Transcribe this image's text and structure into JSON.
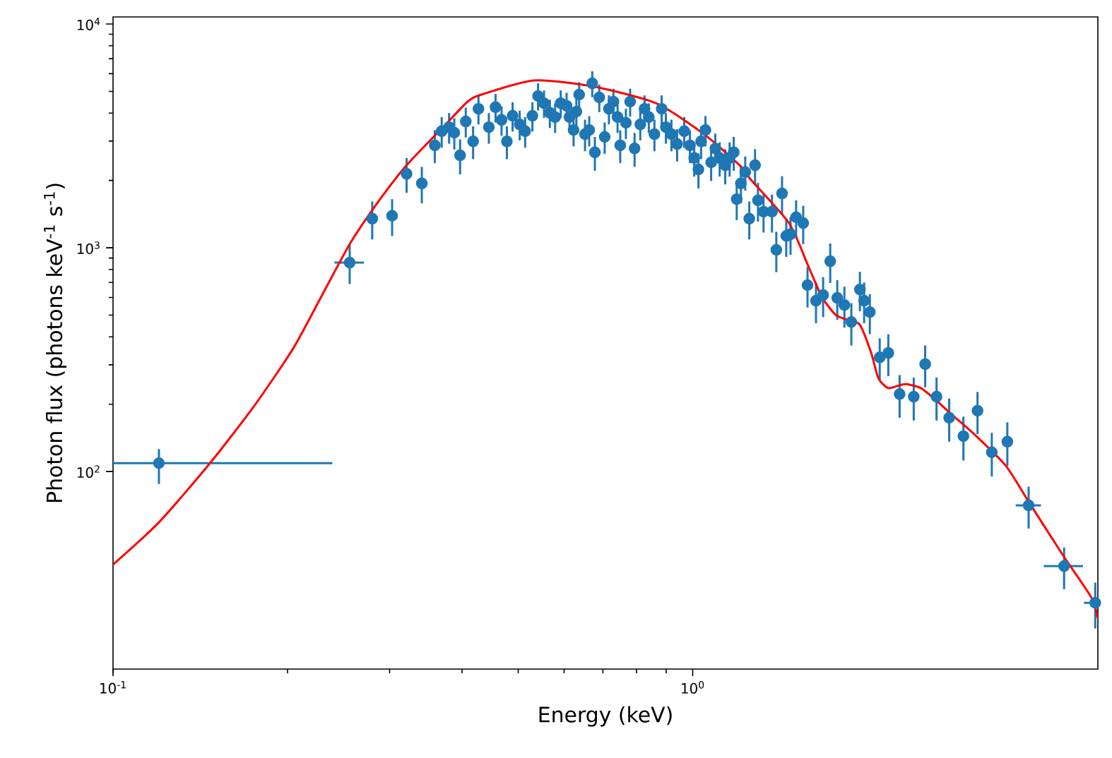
{
  "chart_data": {
    "type": "scatter",
    "xlabel": "Energy (keV)",
    "ylabel": "Photon flux (photons keV$^{-1}$ s$^{-1}$)",
    "log": "xy",
    "xlim": [
      0.1,
      5.0
    ],
    "ylim": [
      13.1,
      10760
    ],
    "xticks": [
      {
        "value": 0.1,
        "label": "10$^{-1}$"
      },
      {
        "value": 1,
        "label": "10$^{0}$"
      }
    ],
    "yticks": [
      {
        "value": 100,
        "label": "10$^{2}$"
      },
      {
        "value": 1000,
        "label": "10$^{3}$"
      },
      {
        "value": 10000,
        "label": "10$^{4}$"
      }
    ],
    "series": [
      {
        "color": "#1f77b4",
        "marker": "circle",
        "x": [
          0.12,
          0.256,
          0.28,
          0.303,
          0.321,
          0.341,
          0.359,
          0.369,
          0.38,
          0.388,
          0.397,
          0.406,
          0.418,
          0.427,
          0.445,
          0.457,
          0.468,
          0.478,
          0.489,
          0.503,
          0.514,
          0.529,
          0.541,
          0.554,
          0.567,
          0.579,
          0.592,
          0.606,
          0.613,
          0.623,
          0.63,
          0.637,
          0.652,
          0.663,
          0.671,
          0.678,
          0.69,
          0.705,
          0.717,
          0.73,
          0.742,
          0.75,
          0.767,
          0.78,
          0.794,
          0.812,
          0.826,
          0.84,
          0.859,
          0.884,
          0.899,
          0.919,
          0.94,
          0.967,
          0.989,
          1.006,
          1.023,
          1.034,
          1.052,
          1.076,
          1.094,
          1.113,
          1.138,
          1.158,
          1.177,
          1.191,
          1.211,
          1.232,
          1.252,
          1.281,
          1.296,
          1.325,
          1.37,
          1.394,
          1.426,
          1.45,
          1.475,
          1.508,
          1.551,
          1.578,
          1.632,
          1.679,
          1.727,
          1.776,
          1.827,
          1.878,
          1.943,
          1.976,
          2.021,
          2.102,
          2.175,
          2.275,
          2.406,
          2.518,
          2.634,
          2.77,
          2.931,
          3.1,
          3.281,
          3.49,
          3.798,
          4.372,
          4.948
        ],
        "values": [
          109,
          859,
          1350,
          1390,
          2140,
          1940,
          2870,
          3320,
          3460,
          3270,
          2590,
          3670,
          2990,
          4180,
          3460,
          4250,
          3730,
          2990,
          3890,
          3560,
          3320,
          3890,
          4770,
          4430,
          4010,
          3840,
          4430,
          4310,
          3840,
          3360,
          4060,
          4840,
          3220,
          3360,
          5430,
          2670,
          4700,
          3130,
          4180,
          4500,
          3840,
          2870,
          3620,
          4500,
          2780,
          3560,
          4180,
          3840,
          3220,
          4180,
          3460,
          3220,
          2910,
          3320,
          2870,
          2520,
          2240,
          2990,
          3360,
          2410,
          2780,
          2520,
          2340,
          2520,
          2670,
          1650,
          1940,
          2180,
          1350,
          2340,
          1630,
          1450,
          1450,
          979,
          1750,
          1130,
          1150,
          1370,
          1290,
          681,
          580,
          615,
          871,
          597,
          555,
          466,
          651,
          580,
          516,
          324,
          339,
          222,
          216,
          302,
          216,
          174,
          144,
          187,
          122,
          136,
          70.6,
          37.8,
          25.9
        ],
        "errors": [
          [
            88,
            126
          ],
          170,
          260,
          260,
          380,
          360,
          480,
          520,
          540,
          520,
          460,
          560,
          500,
          620,
          540,
          620,
          560,
          500,
          580,
          540,
          520,
          580,
          660,
          620,
          580,
          580,
          620,
          620,
          580,
          520,
          600,
          660,
          520,
          520,
          720,
          460,
          660,
          500,
          620,
          640,
          580,
          480,
          560,
          640,
          480,
          540,
          620,
          580,
          520,
          620,
          540,
          520,
          480,
          520,
          480,
          440,
          400,
          500,
          520,
          420,
          460,
          440,
          420,
          440,
          460,
          320,
          360,
          380,
          260,
          420,
          320,
          280,
          280,
          200,
          340,
          220,
          220,
          260,
          250,
          140,
          120,
          125,
          175,
          120,
          115,
          100,
          130,
          120,
          105,
          70,
          72,
          48,
          47,
          64,
          47,
          38,
          32,
          40,
          27,
          30,
          15,
          8,
          6
        ],
        "xerrors": [
          [
            0.1,
            0.239
          ],
          0.015,
          null,
          null,
          null,
          null,
          null,
          null,
          null,
          null,
          null,
          null,
          null,
          null,
          null,
          null,
          null,
          null,
          null,
          null,
          null,
          null,
          null,
          null,
          null,
          null,
          null,
          null,
          null,
          null,
          null,
          null,
          null,
          null,
          null,
          null,
          null,
          null,
          null,
          null,
          null,
          null,
          null,
          null,
          null,
          null,
          null,
          null,
          null,
          null,
          null,
          null,
          null,
          null,
          null,
          null,
          null,
          null,
          null,
          null,
          null,
          null,
          null,
          null,
          null,
          null,
          null,
          null,
          null,
          null,
          null,
          null,
          null,
          null,
          null,
          null,
          null,
          null,
          null,
          null,
          null,
          null,
          null,
          null,
          null,
          null,
          null,
          null,
          null,
          null,
          null,
          null,
          null,
          null,
          null,
          null,
          null,
          null,
          null,
          null,
          0.19,
          0.34,
          [
            4.73,
            5.0
          ]
        ]
      },
      {
        "type": "line",
        "color": "#ff0000",
        "line_style": "solid",
        "marker": "none",
        "x": [
          0.1,
          0.12,
          0.147,
          0.1756,
          0.2044,
          0.2288,
          0.256,
          0.2866,
          0.321,
          0.371,
          0.409,
          0.432,
          0.532,
          0.671,
          0.864,
          1.046,
          1.211,
          1.259,
          1.466,
          1.578,
          1.669,
          1.766,
          1.867,
          1.943,
          2.032,
          2.091,
          2.175,
          2.275,
          2.337,
          2.475,
          2.62,
          2.77,
          3.05,
          3.47,
          3.82,
          4.347,
          4.87,
          5.0
        ],
        "values": [
          38.4,
          59.3,
          109,
          198,
          354,
          606,
          1038,
          1603,
          2339,
          3460,
          4500,
          4840,
          5600,
          5270,
          4430,
          3220,
          2310,
          2020,
          1290,
          845,
          606,
          501,
          473,
          453,
          339,
          261,
          236,
          243,
          246,
          236,
          210,
          184,
          148,
          106,
          71.6,
          42.5,
          27.4,
          22.1
        ]
      }
    ]
  }
}
